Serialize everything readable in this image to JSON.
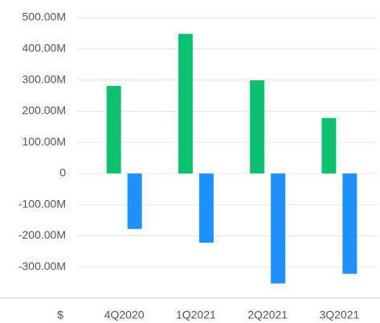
{
  "chart_data": {
    "type": "bar",
    "unit_label": "$",
    "categories": [
      "4Q2020",
      "1Q2021",
      "2Q2021",
      "3Q2021"
    ],
    "series": [
      {
        "color": "#0cc26e",
        "values": [
          281000000,
          448000000,
          299000000,
          178000000
        ]
      },
      {
        "color": "#1e90ff",
        "values": [
          -178000000,
          -222000000,
          -353000000,
          -322000000
        ]
      }
    ],
    "ylim": [
      -400000000,
      500000000
    ],
    "yticks": [
      {
        "value": -300000000,
        "label": "-300.00M"
      },
      {
        "value": -200000000,
        "label": "-200.00M"
      },
      {
        "value": -100000000,
        "label": "-100.00M"
      },
      0,
      {
        "value": 100000000,
        "label": "100.00M"
      },
      {
        "value": 200000000,
        "label": "200.00M"
      },
      {
        "value": 300000000,
        "label": "300.00M"
      },
      {
        "value": 400000000,
        "label": "400.00M"
      },
      {
        "value": 500000000,
        "label": "500.00M"
      }
    ],
    "grid": true
  }
}
